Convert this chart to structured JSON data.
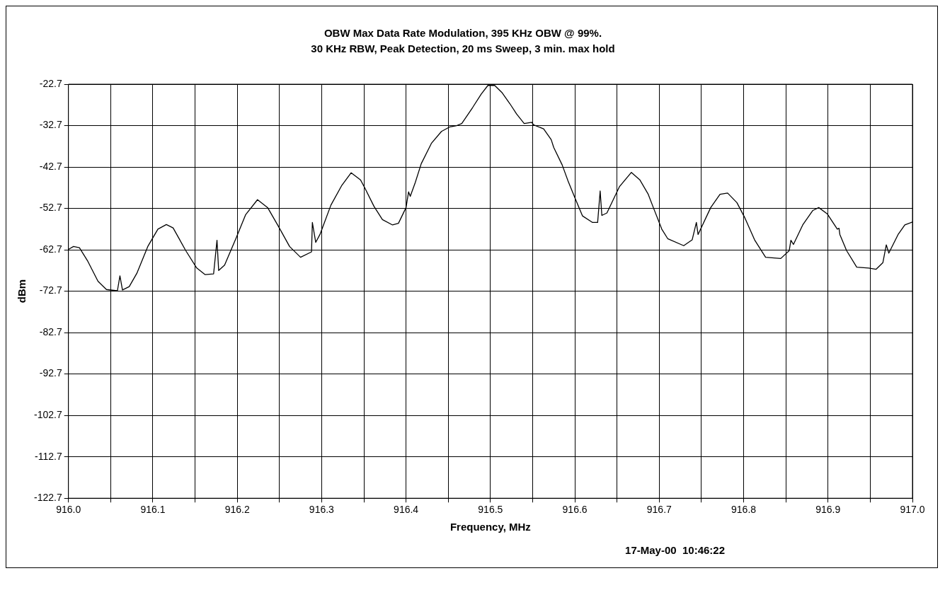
{
  "chart_data": {
    "type": "line",
    "title": "OBW Max Data Rate Modulation, 395 KHz OBW @ 99%.",
    "subtitle": "30 KHz RBW, Peak Detection, 20 ms Sweep, 3 min. max hold",
    "xlabel": "Frequency, MHz",
    "ylabel": "dBm",
    "annotations": [
      "17-May-00  10:46:22"
    ],
    "xlim": [
      916.0,
      917.0
    ],
    "ylim": [
      -122.7,
      -22.7
    ],
    "xticks": [
      {
        "value": 916.0,
        "label": "916.0"
      },
      {
        "value": 916.05,
        "label": null
      },
      916.1,
      {
        "value": 916.15,
        "label": null
      },
      916.2,
      {
        "value": 916.25,
        "label": null
      },
      916.3,
      {
        "value": 916.35,
        "label": null
      },
      916.4,
      {
        "value": 916.45,
        "label": null
      },
      916.5,
      {
        "value": 916.55,
        "label": null
      },
      916.6,
      {
        "value": 916.65,
        "label": null
      },
      916.7,
      {
        "value": 916.75,
        "label": null
      },
      916.8,
      {
        "value": 916.85,
        "label": null
      },
      916.9,
      {
        "value": 916.95,
        "label": null
      },
      {
        "value": 917.0,
        "label": "917.0"
      }
    ],
    "yticks": [
      -122.7,
      -112.7,
      -102.7,
      -92.7,
      -82.7,
      -72.7,
      -62.7,
      -52.7,
      -42.7,
      -32.7,
      -22.7
    ],
    "grid": true,
    "legend": false,
    "marker": "none",
    "line_style": "solid",
    "series": [
      {
        "color": "#000000",
        "x": [
          916.0,
          916.006,
          916.013,
          916.023,
          916.035,
          916.045,
          916.058,
          916.061,
          916.064,
          916.072,
          916.081,
          916.094,
          916.106,
          916.116,
          916.124,
          916.139,
          916.152,
          916.162,
          916.172,
          916.176,
          916.178,
          916.185,
          916.199,
          916.21,
          916.224,
          916.236,
          916.249,
          916.262,
          916.275,
          916.288,
          916.289,
          916.293,
          916.298,
          916.311,
          916.324,
          916.335,
          916.346,
          916.351,
          916.362,
          916.372,
          916.384,
          916.391,
          916.4,
          916.403,
          916.405,
          916.411,
          916.418,
          916.43,
          916.442,
          916.452,
          916.46,
          916.466,
          916.479,
          916.489,
          916.497,
          916.505,
          916.514,
          916.523,
          916.531,
          916.54,
          916.549,
          916.551,
          916.563,
          916.572,
          916.575,
          916.585,
          916.592,
          916.601,
          916.609,
          916.621,
          916.627,
          916.63,
          916.632,
          916.638,
          916.653,
          916.667,
          916.677,
          916.687,
          916.693,
          916.703,
          916.71,
          916.729,
          916.739,
          916.744,
          916.746,
          916.761,
          916.772,
          916.781,
          916.792,
          916.801,
          916.813,
          916.826,
          916.844,
          916.854,
          916.856,
          916.859,
          916.87,
          916.882,
          916.889,
          916.899,
          916.911,
          916.913,
          916.914,
          916.922,
          916.934,
          916.948,
          916.957,
          916.965,
          916.969,
          916.972,
          916.983,
          916.991,
          917.0
        ],
        "values": [
          -62.6,
          -61.9,
          -62.2,
          -65.5,
          -70.3,
          -72.3,
          -72.6,
          -69.0,
          -72.4,
          -71.6,
          -68.4,
          -61.9,
          -57.7,
          -56.6,
          -57.4,
          -62.9,
          -67.1,
          -68.7,
          -68.5,
          -60.4,
          -67.7,
          -66.4,
          -59.7,
          -54.2,
          -50.6,
          -52.5,
          -57.1,
          -61.9,
          -64.5,
          -63.2,
          -56.1,
          -60.9,
          -59.0,
          -51.9,
          -47.1,
          -44.1,
          -45.8,
          -47.7,
          -52.2,
          -55.4,
          -56.7,
          -56.3,
          -52.5,
          -48.7,
          -49.8,
          -46.4,
          -41.9,
          -37.0,
          -34.1,
          -33.0,
          -32.7,
          -32.2,
          -28.3,
          -25.1,
          -23.0,
          -23.0,
          -24.8,
          -27.4,
          -29.9,
          -32.2,
          -31.9,
          -32.5,
          -33.5,
          -36.1,
          -38.0,
          -42.2,
          -46.1,
          -50.6,
          -54.5,
          -56.1,
          -56.1,
          -48.5,
          -54.4,
          -53.8,
          -47.4,
          -44.0,
          -45.8,
          -49.3,
          -52.5,
          -57.7,
          -60.0,
          -61.7,
          -60.3,
          -56.1,
          -59.0,
          -52.5,
          -49.3,
          -49.0,
          -51.3,
          -54.8,
          -60.3,
          -64.5,
          -64.8,
          -62.9,
          -60.4,
          -61.4,
          -56.7,
          -53.2,
          -52.5,
          -54.0,
          -57.7,
          -57.5,
          -59.0,
          -62.9,
          -66.9,
          -67.1,
          -67.4,
          -65.8,
          -61.5,
          -63.5,
          -59.0,
          -56.7,
          -56.0
        ]
      }
    ]
  }
}
